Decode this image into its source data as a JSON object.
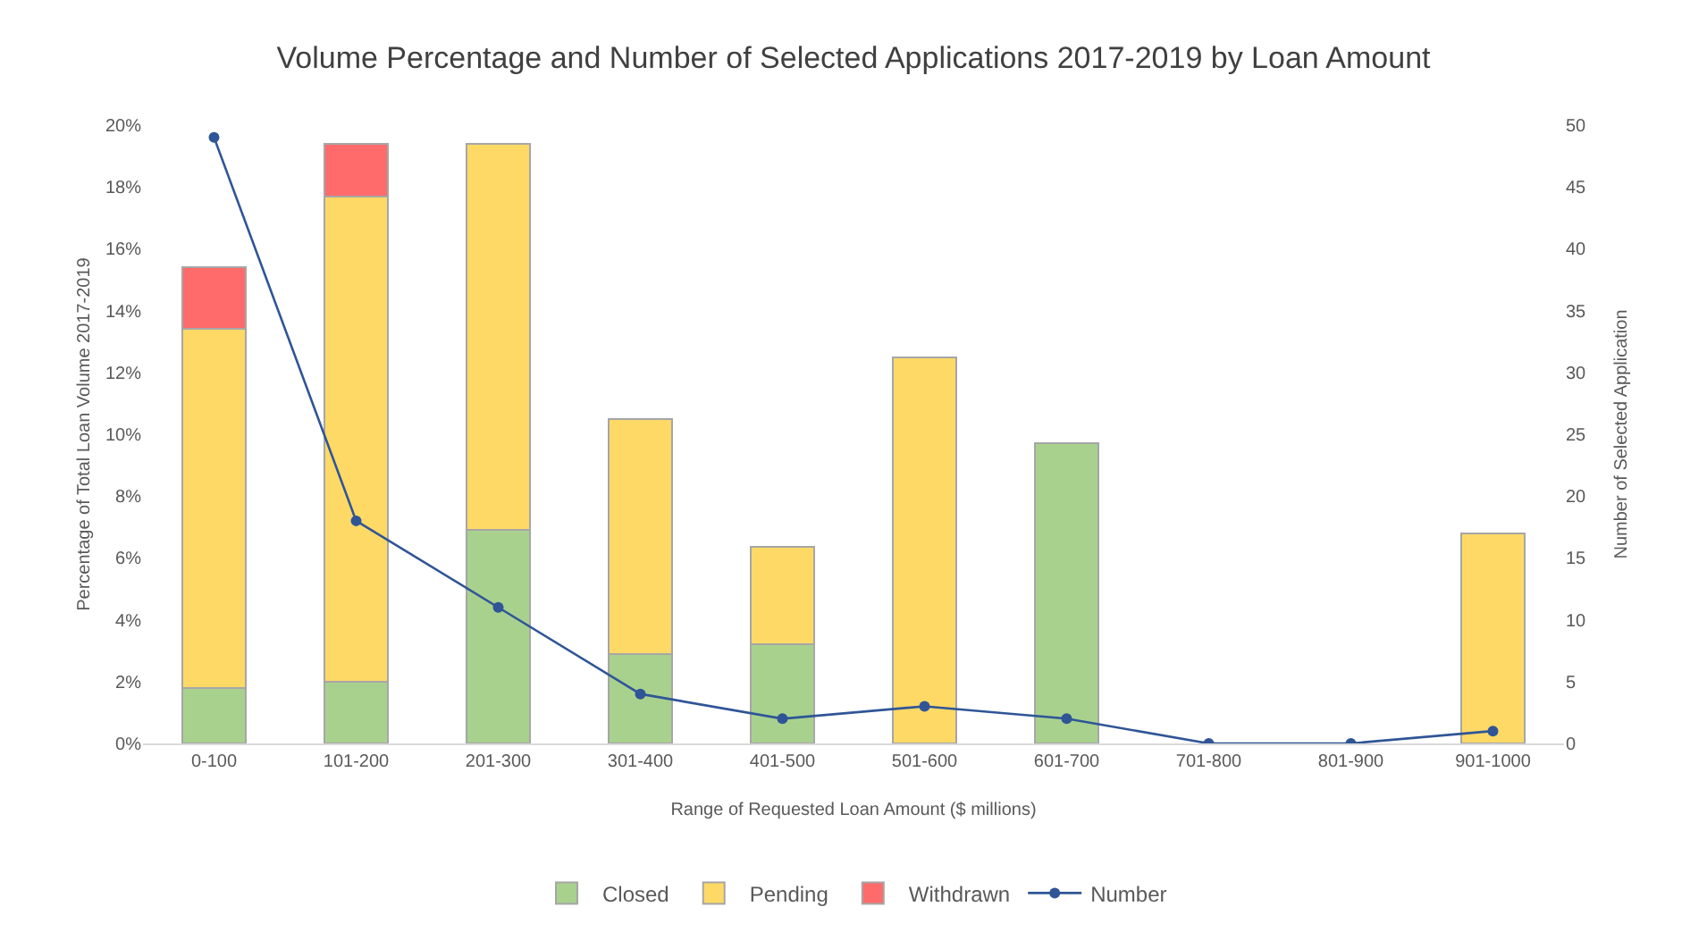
{
  "chart_data": {
    "type": "bar",
    "title": "Volume Percentage and Number of Selected Applications 2017-2019 by Loan Amount",
    "xlabel": "Range of Requested Loan Amount ($ millions)",
    "ylabel": "Percentage of Total Loan Volume 2017-2019",
    "y2label": "Number of Selected Application",
    "categories": [
      "0-100",
      "101-200",
      "201-300",
      "301-400",
      "401-500",
      "501-600",
      "601-700",
      "701-800",
      "801-900",
      "901-1000"
    ],
    "stacked": true,
    "legend": "bottom",
    "grid": false,
    "marker": "circle",
    "series": [
      {
        "name": "Closed",
        "color": "#a9d18e",
        "values": [
          1.8,
          2.0,
          6.9,
          2.9,
          3.2,
          null,
          9.7,
          null,
          null,
          null
        ]
      },
      {
        "name": "Pending",
        "color": "#ffd966",
        "values": [
          11.6,
          15.7,
          12.5,
          7.6,
          3.15,
          12.5,
          null,
          null,
          null,
          6.8
        ]
      },
      {
        "name": "Withdrawn",
        "color": "#ff6b6b",
        "values": [
          2.0,
          1.7,
          null,
          null,
          null,
          null,
          null,
          null,
          null,
          null
        ]
      },
      {
        "name": "Number",
        "type": "line",
        "axis": "y2",
        "color": "#2f5597",
        "values": [
          49,
          18,
          11,
          4,
          2,
          3,
          2,
          0,
          0,
          1
        ]
      }
    ],
    "ylim": [
      0,
      20
    ],
    "yticks": [
      {
        "value": 0,
        "label": "0%"
      },
      {
        "value": 2,
        "label": "2%"
      },
      {
        "value": 4,
        "label": "4%"
      },
      {
        "value": 6,
        "label": "6%"
      },
      {
        "value": 8,
        "label": "8%"
      },
      {
        "value": 10,
        "label": "10%"
      },
      {
        "value": 12,
        "label": "12%"
      },
      {
        "value": 14,
        "label": "14%"
      },
      {
        "value": 16,
        "label": "16%"
      },
      {
        "value": 18,
        "label": "18%"
      },
      {
        "value": 20,
        "label": "20%"
      }
    ],
    "y2lim": [
      0,
      50
    ],
    "y2ticks": [
      0,
      5,
      10,
      15,
      20,
      25,
      30,
      35,
      40,
      45,
      50
    ]
  }
}
